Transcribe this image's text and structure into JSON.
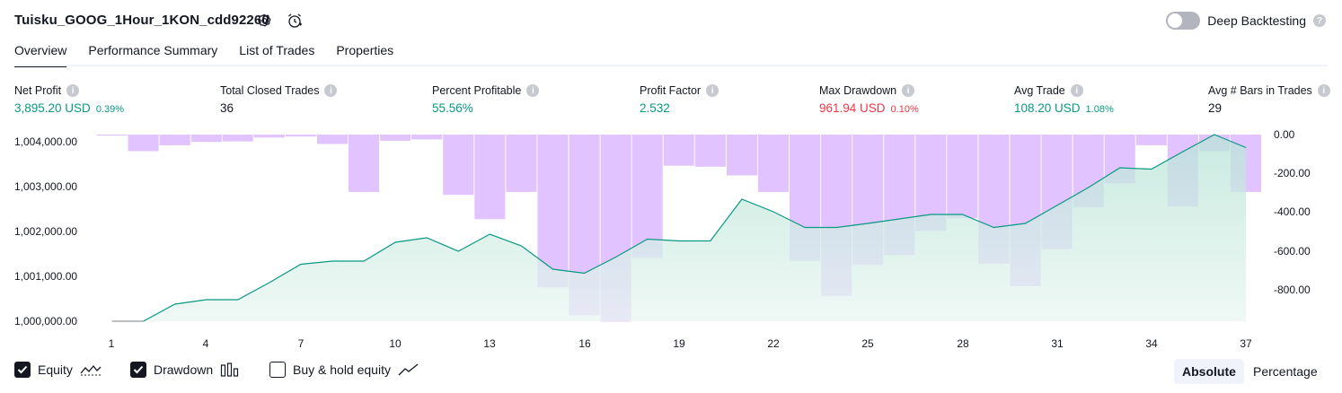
{
  "header": {
    "title": "Tuisku_GOOG_1Hour_1KON_cdd92260",
    "deep_backtesting_label": "Deep Backtesting",
    "help_mark": "?"
  },
  "tabs": [
    {
      "label": "Overview",
      "active": true
    },
    {
      "label": "Performance Summary",
      "active": false
    },
    {
      "label": "List of Trades",
      "active": false
    },
    {
      "label": "Properties",
      "active": false
    }
  ],
  "metrics": [
    {
      "label": "Net Profit",
      "value": "3,895.20 USD",
      "pct": "0.39%",
      "color": "#089981"
    },
    {
      "label": "Total Closed Trades",
      "value": "36",
      "pct": "",
      "color": "#131722"
    },
    {
      "label": "Percent Profitable",
      "value": "55.56%",
      "pct": "",
      "color": "#089981"
    },
    {
      "label": "Profit Factor",
      "value": "2.532",
      "pct": "",
      "color": "#089981"
    },
    {
      "label": "Max Drawdown",
      "value": "961.94 USD",
      "pct": "0.10%",
      "color": "#f23645"
    },
    {
      "label": "Avg Trade",
      "value": "108.20 USD",
      "pct": "1.08%",
      "color": "#089981"
    },
    {
      "label": "Avg # Bars in Trades",
      "value": "29",
      "pct": "",
      "color": "#131722"
    }
  ],
  "legend": {
    "equity": "Equity",
    "drawdown": "Drawdown",
    "buy_hold": "Buy & hold equity"
  },
  "mode": {
    "absolute": "Absolute",
    "percentage": "Percentage"
  },
  "chart_data": {
    "type": "line",
    "x": [
      1,
      2,
      3,
      4,
      5,
      6,
      7,
      8,
      9,
      10,
      11,
      12,
      13,
      14,
      15,
      16,
      17,
      18,
      19,
      20,
      21,
      22,
      23,
      24,
      25,
      26,
      27,
      28,
      29,
      30,
      31,
      32,
      33,
      34,
      35,
      36,
      37
    ],
    "x_ticks": [
      "1",
      "4",
      "7",
      "10",
      "13",
      "16",
      "19",
      "22",
      "25",
      "28",
      "31",
      "34",
      "37"
    ],
    "equity_ticks": [
      "1,004,000.00",
      "1,003,000.00",
      "1,002,000.00",
      "1,001,000.00",
      "1,000,000.00"
    ],
    "drawdown_ticks": [
      "0.00",
      "-200.00",
      "-400.00",
      "-600.00",
      "-800.00"
    ],
    "equity_ylim": [
      1000000,
      1004000
    ],
    "drawdown_ylim": [
      -960,
      0
    ],
    "series": [
      {
        "name": "Equity",
        "color": "#089981",
        "values": [
          1000000,
          1000000,
          1000380,
          1000480,
          1000480,
          1000860,
          1001270,
          1001340,
          1001340,
          1001760,
          1001860,
          1001560,
          1001940,
          1001680,
          1001160,
          1001070,
          1001430,
          1001830,
          1001790,
          1001790,
          1002720,
          1002440,
          1002090,
          1002090,
          1002180,
          1002280,
          1002380,
          1002380,
          1002090,
          1002180,
          1002580,
          1002980,
          1003420,
          1003390,
          1003780,
          1004160,
          1003870
        ]
      },
      {
        "name": "Drawdown",
        "color": "#e1c3ff",
        "values": [
          -5,
          -85,
          -55,
          -38,
          -35,
          -15,
          -10,
          -48,
          -295,
          -32,
          -25,
          -310,
          -435,
          -295,
          -785,
          -930,
          -962,
          -635,
          -160,
          -165,
          -210,
          -295,
          -650,
          -830,
          -670,
          -620,
          -495,
          -430,
          -665,
          -780,
          -590,
          -375,
          -250,
          -55,
          -370,
          -85,
          -295
        ]
      }
    ]
  }
}
